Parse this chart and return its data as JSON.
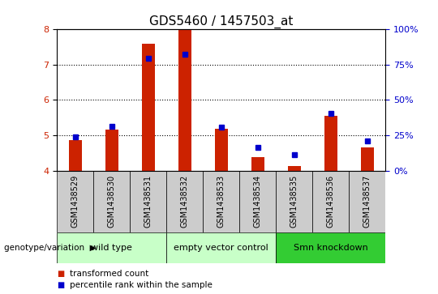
{
  "title": "GDS5460 / 1457503_at",
  "samples": [
    "GSM1438529",
    "GSM1438530",
    "GSM1438531",
    "GSM1438532",
    "GSM1438533",
    "GSM1438534",
    "GSM1438535",
    "GSM1438536",
    "GSM1438537"
  ],
  "red_values": [
    4.87,
    5.15,
    7.6,
    8.0,
    5.18,
    4.38,
    4.12,
    5.55,
    4.65
  ],
  "blue_values": [
    4.95,
    5.25,
    7.18,
    7.3,
    5.22,
    4.65,
    4.45,
    5.62,
    4.85
  ],
  "y_min": 4.0,
  "y_max": 8.0,
  "y_ticks": [
    4,
    5,
    6,
    7,
    8
  ],
  "y2_ticks": [
    0,
    25,
    50,
    75,
    100
  ],
  "groups": [
    {
      "label": "wild type",
      "spans": [
        0,
        1,
        2
      ],
      "color": "#c8ffc8"
    },
    {
      "label": "empty vector control",
      "spans": [
        3,
        4,
        5
      ],
      "color": "#c8ffc8"
    },
    {
      "label": "Smn knockdown",
      "spans": [
        6,
        7,
        8
      ],
      "color": "#33cc33"
    }
  ],
  "sample_bg_color": "#cccccc",
  "red_color": "#cc2200",
  "blue_color": "#0000cc",
  "title_fontsize": 11,
  "tick_fontsize": 8,
  "sample_fontsize": 7,
  "group_fontsize": 8,
  "bar_width": 0.35
}
